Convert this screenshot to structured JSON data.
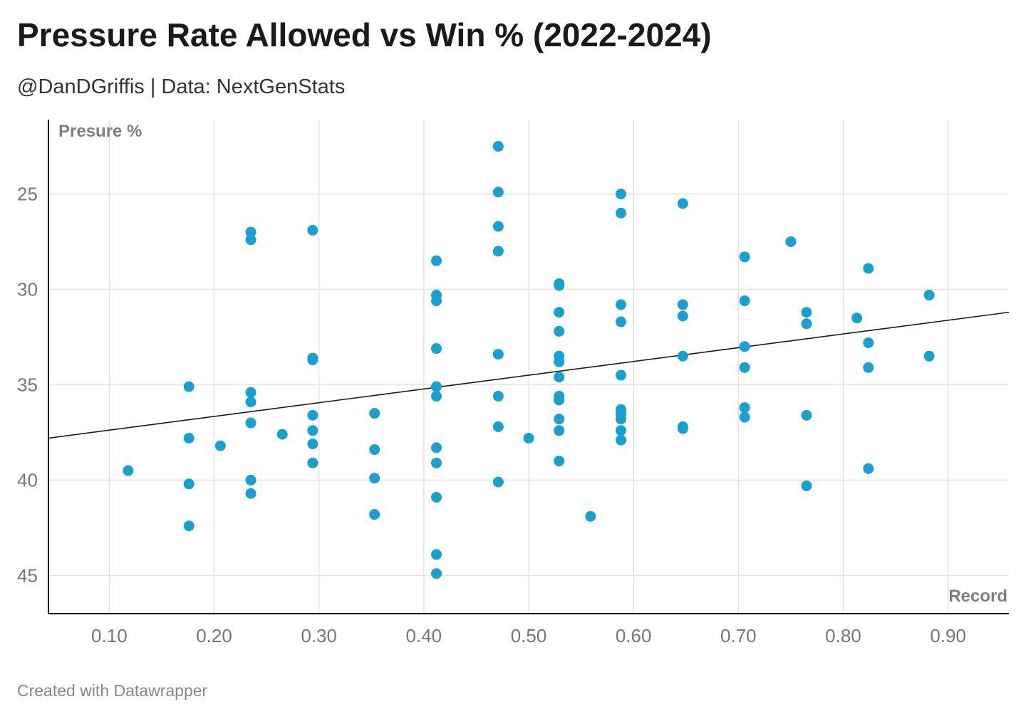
{
  "title": "Pressure Rate Allowed vs Win % (2022-2024)",
  "subtitle": "@DanDGriffis | Data: NextGenStats",
  "footer": "Created with Datawrapper",
  "colors": {
    "dot": "#1aa0cf",
    "trend": "#1a1a1a",
    "grid": "#e3e3e3",
    "axis": "#1a1a1a"
  },
  "chart_data": {
    "type": "scatter",
    "xlabel": "Record",
    "ylabel": "Presure %",
    "xlim": [
      0.042,
      0.958
    ],
    "ylim": [
      21.1,
      47.0
    ],
    "y_reversed": true,
    "grid": true,
    "xticks": [
      {
        "value": 0.1,
        "label": "0.10"
      },
      {
        "value": 0.2,
        "label": "0.20"
      },
      {
        "value": 0.3,
        "label": "0.30"
      },
      {
        "value": 0.4,
        "label": "0.40"
      },
      {
        "value": 0.5,
        "label": "0.50"
      },
      {
        "value": 0.6,
        "label": "0.60"
      },
      {
        "value": 0.7,
        "label": "0.70"
      },
      {
        "value": 0.8,
        "label": "0.80"
      },
      {
        "value": 0.9,
        "label": "0.90"
      }
    ],
    "yticks": [
      {
        "value": 25,
        "label": "25"
      },
      {
        "value": 30,
        "label": "30"
      },
      {
        "value": 35,
        "label": "35"
      },
      {
        "value": 40,
        "label": "40"
      },
      {
        "value": 45,
        "label": "45"
      }
    ],
    "trendline": [
      {
        "x": 0.042,
        "y": 37.8
      },
      {
        "x": 0.958,
        "y": 31.2
      }
    ],
    "points": [
      {
        "x": 0.118,
        "y": 39.5
      },
      {
        "x": 0.176,
        "y": 35.1
      },
      {
        "x": 0.176,
        "y": 37.8
      },
      {
        "x": 0.176,
        "y": 40.2
      },
      {
        "x": 0.176,
        "y": 42.4
      },
      {
        "x": 0.206,
        "y": 38.2
      },
      {
        "x": 0.235,
        "y": 27.0
      },
      {
        "x": 0.235,
        "y": 27.4
      },
      {
        "x": 0.235,
        "y": 35.4
      },
      {
        "x": 0.235,
        "y": 35.9
      },
      {
        "x": 0.235,
        "y": 37.0
      },
      {
        "x": 0.235,
        "y": 40.0
      },
      {
        "x": 0.235,
        "y": 40.7
      },
      {
        "x": 0.265,
        "y": 37.6
      },
      {
        "x": 0.294,
        "y": 26.9
      },
      {
        "x": 0.294,
        "y": 33.6
      },
      {
        "x": 0.294,
        "y": 33.7
      },
      {
        "x": 0.294,
        "y": 36.6
      },
      {
        "x": 0.294,
        "y": 37.4
      },
      {
        "x": 0.294,
        "y": 38.1
      },
      {
        "x": 0.294,
        "y": 39.1
      },
      {
        "x": 0.353,
        "y": 36.5
      },
      {
        "x": 0.353,
        "y": 38.4
      },
      {
        "x": 0.353,
        "y": 39.9
      },
      {
        "x": 0.353,
        "y": 41.8
      },
      {
        "x": 0.412,
        "y": 28.5
      },
      {
        "x": 0.412,
        "y": 30.3
      },
      {
        "x": 0.412,
        "y": 30.6
      },
      {
        "x": 0.412,
        "y": 33.1
      },
      {
        "x": 0.412,
        "y": 35.1
      },
      {
        "x": 0.412,
        "y": 35.6
      },
      {
        "x": 0.412,
        "y": 38.3
      },
      {
        "x": 0.412,
        "y": 39.1
      },
      {
        "x": 0.412,
        "y": 40.9
      },
      {
        "x": 0.412,
        "y": 43.9
      },
      {
        "x": 0.412,
        "y": 44.9
      },
      {
        "x": 0.471,
        "y": 22.5
      },
      {
        "x": 0.471,
        "y": 24.9
      },
      {
        "x": 0.471,
        "y": 26.7
      },
      {
        "x": 0.471,
        "y": 28.0
      },
      {
        "x": 0.471,
        "y": 33.4
      },
      {
        "x": 0.471,
        "y": 35.6
      },
      {
        "x": 0.471,
        "y": 37.2
      },
      {
        "x": 0.471,
        "y": 40.1
      },
      {
        "x": 0.5,
        "y": 37.8
      },
      {
        "x": 0.529,
        "y": 29.7
      },
      {
        "x": 0.529,
        "y": 29.8
      },
      {
        "x": 0.529,
        "y": 31.2
      },
      {
        "x": 0.529,
        "y": 32.2
      },
      {
        "x": 0.529,
        "y": 33.5
      },
      {
        "x": 0.529,
        "y": 33.8
      },
      {
        "x": 0.529,
        "y": 34.6
      },
      {
        "x": 0.529,
        "y": 35.6
      },
      {
        "x": 0.529,
        "y": 35.8
      },
      {
        "x": 0.529,
        "y": 36.8
      },
      {
        "x": 0.529,
        "y": 37.4
      },
      {
        "x": 0.529,
        "y": 39.0
      },
      {
        "x": 0.559,
        "y": 41.9
      },
      {
        "x": 0.588,
        "y": 25.0
      },
      {
        "x": 0.588,
        "y": 26.0
      },
      {
        "x": 0.588,
        "y": 30.8
      },
      {
        "x": 0.588,
        "y": 31.7
      },
      {
        "x": 0.588,
        "y": 34.5
      },
      {
        "x": 0.588,
        "y": 36.3
      },
      {
        "x": 0.588,
        "y": 36.5
      },
      {
        "x": 0.588,
        "y": 36.8
      },
      {
        "x": 0.588,
        "y": 37.4
      },
      {
        "x": 0.588,
        "y": 37.9
      },
      {
        "x": 0.647,
        "y": 25.5
      },
      {
        "x": 0.647,
        "y": 30.8
      },
      {
        "x": 0.647,
        "y": 31.4
      },
      {
        "x": 0.647,
        "y": 33.5
      },
      {
        "x": 0.647,
        "y": 37.2
      },
      {
        "x": 0.647,
        "y": 37.3
      },
      {
        "x": 0.706,
        "y": 28.3
      },
      {
        "x": 0.706,
        "y": 30.6
      },
      {
        "x": 0.706,
        "y": 33.0
      },
      {
        "x": 0.706,
        "y": 34.1
      },
      {
        "x": 0.706,
        "y": 36.2
      },
      {
        "x": 0.706,
        "y": 36.7
      },
      {
        "x": 0.75,
        "y": 27.5
      },
      {
        "x": 0.765,
        "y": 31.2
      },
      {
        "x": 0.765,
        "y": 31.8
      },
      {
        "x": 0.765,
        "y": 36.6
      },
      {
        "x": 0.765,
        "y": 40.3
      },
      {
        "x": 0.813,
        "y": 31.5
      },
      {
        "x": 0.824,
        "y": 28.9
      },
      {
        "x": 0.824,
        "y": 32.8
      },
      {
        "x": 0.824,
        "y": 34.1
      },
      {
        "x": 0.824,
        "y": 39.4
      },
      {
        "x": 0.882,
        "y": 30.3
      },
      {
        "x": 0.882,
        "y": 33.5
      }
    ]
  }
}
